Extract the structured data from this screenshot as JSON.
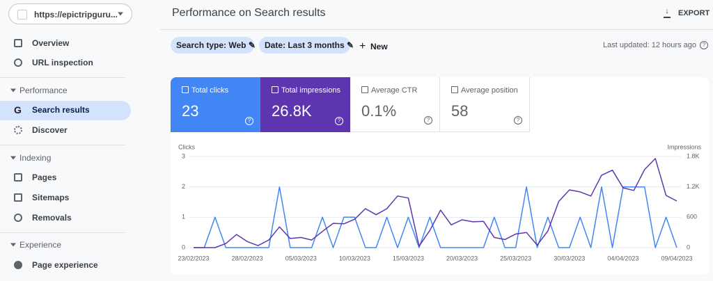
{
  "sidebar": {
    "site": "https://epictripguru...",
    "items": [
      "Overview",
      "URL inspection"
    ],
    "sections": [
      {
        "title": "Performance",
        "items": [
          "Search results",
          "Discover"
        ]
      },
      {
        "title": "Indexing",
        "items": [
          "Pages",
          "Sitemaps",
          "Removals"
        ]
      },
      {
        "title": "Experience",
        "items": [
          "Page experience"
        ]
      }
    ]
  },
  "header": {
    "title": "Performance on Search results",
    "export": "EXPORT"
  },
  "filters": {
    "chips": [
      "Search type: Web",
      "Date: Last 3 months"
    ],
    "new": "New",
    "last_updated": "Last updated: 12 hours ago"
  },
  "metrics": [
    {
      "label": "Total clicks",
      "value": "23"
    },
    {
      "label": "Total impressions",
      "value": "26.8K"
    },
    {
      "label": "Average CTR",
      "value": "0.1%"
    },
    {
      "label": "Average position",
      "value": "58"
    }
  ],
  "chart_data": {
    "type": "line",
    "y_label": "Clicks",
    "y2_label": "Impressions",
    "x": [
      "23/02/2023",
      "24/02/2023",
      "25/02/2023",
      "26/02/2023",
      "27/02/2023",
      "28/02/2023",
      "01/03/2023",
      "02/03/2023",
      "03/03/2023",
      "04/03/2023",
      "05/03/2023",
      "06/03/2023",
      "07/03/2023",
      "08/03/2023",
      "09/03/2023",
      "10/03/2023",
      "11/03/2023",
      "12/03/2023",
      "13/03/2023",
      "14/03/2023",
      "15/03/2023",
      "16/03/2023",
      "17/03/2023",
      "18/03/2023",
      "19/03/2023",
      "20/03/2023",
      "21/03/2023",
      "22/03/2023",
      "23/03/2023",
      "24/03/2023",
      "25/03/2023",
      "26/03/2023",
      "27/03/2023",
      "28/03/2023",
      "29/03/2023",
      "30/03/2023",
      "31/03/2023",
      "01/04/2023",
      "02/04/2023",
      "03/04/2023",
      "04/04/2023",
      "05/04/2023",
      "06/04/2023",
      "07/04/2023",
      "08/04/2023",
      "09/04/2023"
    ],
    "series": [
      {
        "color": "#4285f4",
        "axis": "y",
        "values": [
          0,
          0,
          1,
          0,
          0,
          0,
          0,
          0,
          2,
          0,
          0,
          0,
          1,
          0,
          1,
          1,
          0,
          0,
          1,
          0,
          1,
          0,
          1,
          0,
          0,
          0,
          0,
          0,
          1,
          0,
          0,
          2,
          0,
          1,
          0,
          0,
          1,
          0,
          2,
          0,
          2,
          2,
          2,
          0,
          1,
          0
        ]
      },
      {
        "color": "#5e35b1",
        "axis": "y2",
        "values": [
          0,
          0,
          0,
          80,
          260,
          120,
          40,
          150,
          410,
          180,
          200,
          150,
          320,
          480,
          470,
          560,
          770,
          650,
          770,
          1020,
          980,
          30,
          340,
          740,
          450,
          550,
          510,
          520,
          200,
          160,
          270,
          300,
          50,
          330,
          910,
          1140,
          1100,
          1020,
          1430,
          1530,
          1180,
          1130,
          1540,
          1760,
          1030,
          920
        ]
      }
    ],
    "ylim": [
      0,
      3
    ],
    "yticks": [
      0,
      1,
      2,
      3
    ],
    "y2lim": [
      0,
      1800
    ],
    "y2ticks": [
      0,
      600,
      {
        "value": 1200,
        "label": "1.2K"
      },
      {
        "value": 1800,
        "label": "1.8K"
      }
    ],
    "grid": true
  }
}
